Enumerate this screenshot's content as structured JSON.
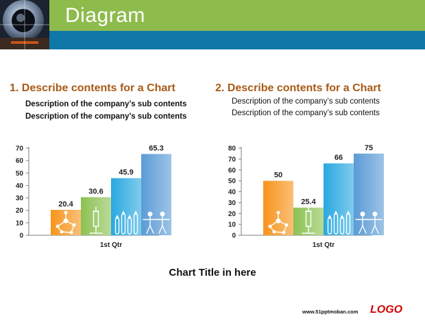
{
  "header": {
    "title": "Diagram"
  },
  "left": {
    "heading": "1. Describe contents for a Chart",
    "descriptions": [
      "Description of the company’s sub contents",
      "Description of the company’s sub contents"
    ]
  },
  "right": {
    "heading": "2. Describe contents for a Chart",
    "descriptions": [
      "Description of the company’s sub contents",
      "Description of the company’s sub contents"
    ]
  },
  "chart_title": "Chart Title in here",
  "footer": {
    "url": "www.51pptmoban.com",
    "logo": "LOGO"
  },
  "colors": {
    "header_green": "#8dbb4c",
    "header_blue": "#0f77a8",
    "heading_brown": "#a85a17",
    "logo_red": "#d40000"
  },
  "chart_data": [
    {
      "type": "bar",
      "categories": [
        "1st Qtr"
      ],
      "series": [
        {
          "values": [
            20.4
          ],
          "color": "#f7941d",
          "icon": "molecule-icon"
        },
        {
          "values": [
            30.6
          ],
          "color": "#8cc152",
          "icon": "syringe-icon"
        },
        {
          "values": [
            45.9
          ],
          "color": "#29a8e0",
          "icon": "test-tubes-icon"
        },
        {
          "values": [
            65.3
          ],
          "color": "#5b9bd5",
          "icon": "people-icon"
        }
      ],
      "ylim": [
        0,
        70
      ],
      "yticks": [
        0,
        10,
        20,
        30,
        40,
        50,
        60,
        70
      ],
      "grid": false,
      "legend": "none"
    },
    {
      "type": "bar",
      "categories": [
        "1st Qtr"
      ],
      "series": [
        {
          "values": [
            50
          ],
          "color": "#f7941d",
          "icon": "molecule-icon"
        },
        {
          "values": [
            25.4
          ],
          "color": "#8cc152",
          "icon": "syringe-icon"
        },
        {
          "values": [
            66
          ],
          "color": "#29a8e0",
          "icon": "test-tubes-icon"
        },
        {
          "values": [
            75
          ],
          "color": "#5b9bd5",
          "icon": "people-icon"
        }
      ],
      "ylim": [
        0,
        80
      ],
      "yticks": [
        0,
        10,
        20,
        30,
        40,
        50,
        60,
        70,
        80
      ],
      "grid": false,
      "legend": "none"
    }
  ]
}
